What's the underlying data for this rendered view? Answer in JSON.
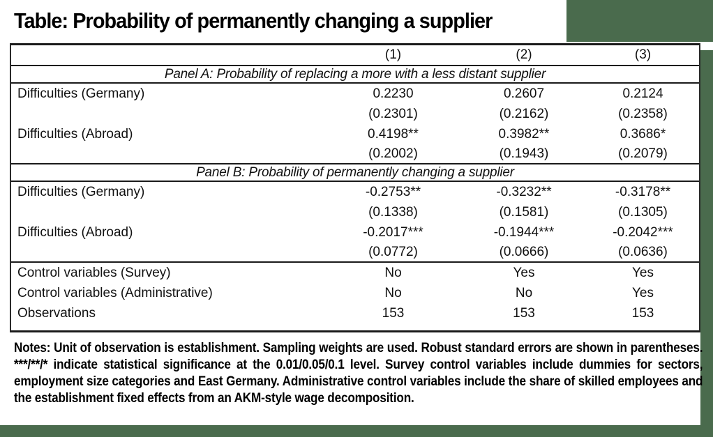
{
  "page": {
    "title": "Table: Probability of permanently changing a supplier"
  },
  "colors": {
    "frame_green": "#4a6b4d",
    "table_border": "#1a1a1a"
  },
  "table": {
    "column_headers": [
      "(1)",
      "(2)",
      "(3)"
    ],
    "panels": [
      {
        "title": "Panel A: Probability of replacing a more with a less distant supplier",
        "rows": [
          {
            "label": "Difficulties (Germany)",
            "values": [
              "0.2230",
              "0.2607",
              "0.2124"
            ]
          },
          {
            "label": "",
            "values": [
              "(0.2301)",
              "(0.2162)",
              "(0.2358)"
            ]
          },
          {
            "label": "Difficulties (Abroad)",
            "values": [
              "0.4198**",
              "0.3982**",
              "0.3686*"
            ]
          },
          {
            "label": "",
            "values": [
              "(0.2002)",
              "(0.1943)",
              "(0.2079)"
            ]
          }
        ]
      },
      {
        "title": "Panel B: Probability of permanently changing a supplier",
        "rows": [
          {
            "label": "Difficulties (Germany)",
            "values": [
              "-0.2753**",
              "-0.3232**",
              "-0.3178**"
            ]
          },
          {
            "label": "",
            "values": [
              "(0.1338)",
              "(0.1581)",
              "(0.1305)"
            ]
          },
          {
            "label": "Difficulties (Abroad)",
            "values": [
              "-0.2017***",
              "-0.1944***",
              "-0.2042***"
            ]
          },
          {
            "label": "",
            "values": [
              "(0.0772)",
              "(0.0666)",
              "(0.0636)"
            ]
          }
        ]
      }
    ],
    "footer_rows": [
      {
        "label": "Control variables (Survey)",
        "values": [
          "No",
          "Yes",
          "Yes"
        ]
      },
      {
        "label": "Control variables (Administrative)",
        "values": [
          "No",
          "No",
          "Yes"
        ]
      },
      {
        "label": "Observations",
        "values": [
          "153",
          "153",
          "153"
        ]
      }
    ]
  },
  "notes": "Notes: Unit of observation is establishment. Sampling weights are used. Robust standard errors are shown in parentheses. ***/**/* indicate statistical significance at the 0.01/0.05/0.1 level. Survey control variables include dummies for sectors, employment size categories and East Germany. Administrative control variables include the share of skilled employees and the establishment fixed effects from an AKM-style wage decomposition."
}
